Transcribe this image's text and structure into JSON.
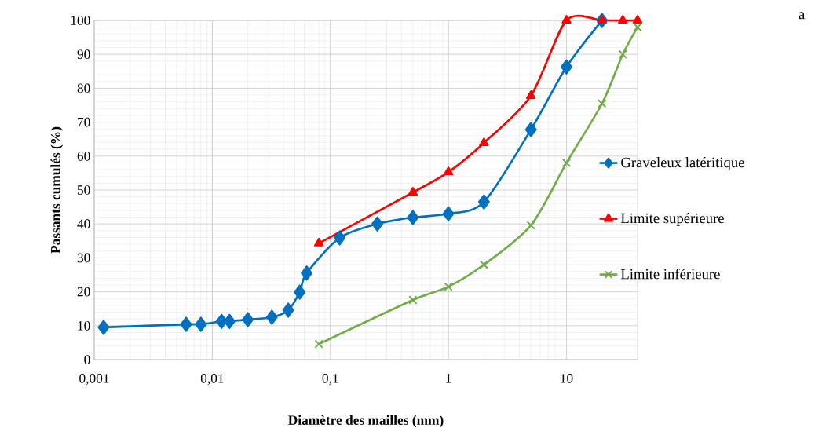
{
  "chart_data": {
    "type": "line",
    "xlabel": "Diamètre des mailles (mm)",
    "ylabel": "Passants cumulés (%)",
    "annotations": [
      "a"
    ],
    "log": "x",
    "grid": true,
    "legend": "right",
    "line_style": "solid",
    "xlim": [
      0.001,
      40
    ],
    "xticks": [
      {
        "value": 0.001,
        "label": "0,001"
      },
      {
        "value": 0.01,
        "label": "0,01"
      },
      {
        "value": 0.1,
        "label": "0,1"
      },
      {
        "value": 1,
        "label": "1"
      },
      {
        "value": 10,
        "label": "10"
      }
    ],
    "ylim": [
      0,
      100
    ],
    "yticks": [
      0,
      10,
      20,
      30,
      40,
      50,
      60,
      70,
      80,
      90,
      100
    ],
    "series": [
      {
        "name": "Graveleux latéritique",
        "color": "#0070c0",
        "marker": "diamond",
        "x": [
          0.0012,
          0.006,
          0.008,
          0.012,
          0.014,
          0.02,
          0.032,
          0.044,
          0.055,
          0.063,
          0.12,
          0.25,
          0.5,
          1,
          2,
          5,
          10,
          20
        ],
        "values": [
          9.5,
          10.4,
          10.4,
          11.3,
          11.3,
          11.8,
          12.5,
          14.6,
          19.9,
          25.5,
          35.9,
          40,
          41.9,
          43,
          46.5,
          67.8,
          86.3,
          100
        ]
      },
      {
        "name": "Limite supérieure",
        "color": "#ff0000",
        "marker": "triangle",
        "x": [
          0.08,
          0.5,
          1,
          2,
          5,
          10,
          20,
          30,
          40
        ],
        "values": [
          34.3,
          49.3,
          55.3,
          63.9,
          77.8,
          100,
          100,
          100,
          100
        ]
      },
      {
        "name": "Limite inférieure",
        "color": "#70ad47",
        "marker": "cross",
        "x": [
          0.08,
          0.5,
          1,
          2,
          5,
          10,
          20,
          30,
          40
        ],
        "values": [
          4.6,
          17.6,
          21.5,
          28,
          39.6,
          58,
          75.5,
          90,
          98
        ]
      }
    ]
  }
}
